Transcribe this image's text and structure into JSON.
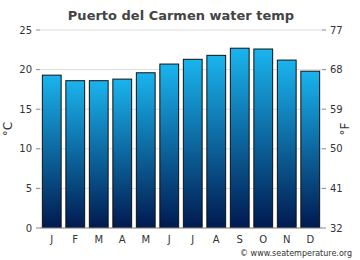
{
  "chart_data": {
    "type": "bar",
    "title": "Puerto del Carmen water temp",
    "categories": [
      "J",
      "F",
      "M",
      "A",
      "M",
      "J",
      "J",
      "A",
      "S",
      "O",
      "N",
      "D"
    ],
    "values": [
      19.3,
      18.6,
      18.6,
      18.8,
      19.6,
      20.7,
      21.3,
      21.8,
      22.7,
      22.6,
      21.2,
      19.8
    ],
    "color": "#1ab4ee",
    "ylabel": "°C",
    "y2label": "°F",
    "ylim": [
      0,
      25
    ],
    "yticks": [
      0,
      5,
      10,
      15,
      20,
      25
    ],
    "y2lim": [
      32,
      77
    ],
    "y2ticks": [
      32,
      41,
      50,
      59,
      68,
      77
    ],
    "grid": true,
    "footer": "© www.seatemperature.org"
  }
}
